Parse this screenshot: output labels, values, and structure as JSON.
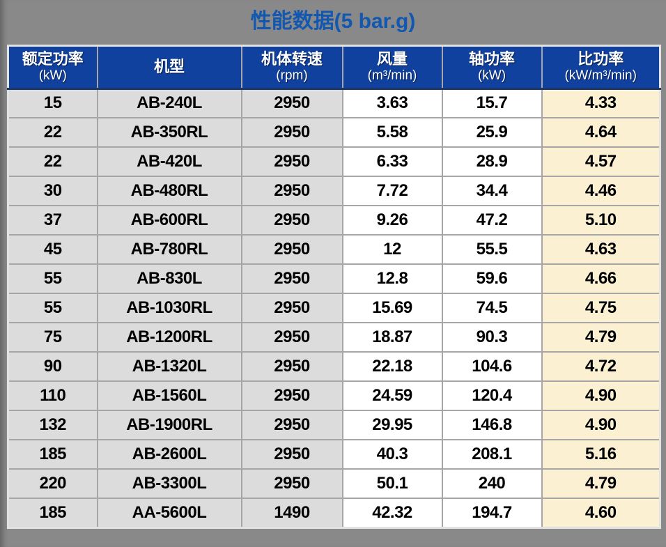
{
  "title": "性能数据(5 bar.g)",
  "chart_data": {
    "type": "table",
    "title": "性能数据(5 bar.g)",
    "columns": [
      {
        "key": "rated_power",
        "label": "额定功率",
        "unit": "(kW)"
      },
      {
        "key": "model",
        "label": "机型",
        "unit": ""
      },
      {
        "key": "body_speed",
        "label": "机体转速",
        "unit": "(rpm)"
      },
      {
        "key": "air_flow",
        "label": "风量",
        "unit": "(m³/min)"
      },
      {
        "key": "shaft_power",
        "label": "轴功率",
        "unit": "(kW)"
      },
      {
        "key": "specific_power",
        "label": "比功率",
        "unit": "(kW/m³/min)"
      }
    ],
    "rows": [
      [
        "15",
        "AB-240L",
        "2950",
        "3.63",
        "15.7",
        "4.33"
      ],
      [
        "22",
        "AB-350RL",
        "2950",
        "5.58",
        "25.9",
        "4.64"
      ],
      [
        "22",
        "AB-420L",
        "2950",
        "6.33",
        "28.9",
        "4.57"
      ],
      [
        "30",
        "AB-480RL",
        "2950",
        "7.72",
        "34.4",
        "4.46"
      ],
      [
        "37",
        "AB-600RL",
        "2950",
        "9.26",
        "47.2",
        "5.10"
      ],
      [
        "45",
        "AB-780RL",
        "2950",
        "12",
        "55.5",
        "4.63"
      ],
      [
        "55",
        "AB-830L",
        "2950",
        "12.8",
        "59.6",
        "4.66"
      ],
      [
        "55",
        "AB-1030RL",
        "2950",
        "15.69",
        "74.5",
        "4.75"
      ],
      [
        "75",
        "AB-1200RL",
        "2950",
        "18.87",
        "90.3",
        "4.79"
      ],
      [
        "90",
        "AB-1320L",
        "2950",
        "22.18",
        "104.6",
        "4.72"
      ],
      [
        "110",
        "AB-1560L",
        "2950",
        "24.59",
        "120.4",
        "4.90"
      ],
      [
        "132",
        "AB-1900RL",
        "2950",
        "29.95",
        "146.8",
        "4.90"
      ],
      [
        "185",
        "AB-2600L",
        "2950",
        "40.3",
        "208.1",
        "5.16"
      ],
      [
        "220",
        "AB-3300L",
        "2950",
        "50.1",
        "240",
        "4.79"
      ],
      [
        "185",
        "AA-5600L",
        "1490",
        "42.32",
        "194.7",
        "4.60"
      ]
    ]
  },
  "colors": {
    "page_background": "#898989",
    "title_text": "#1257B0",
    "header_background": "#10419E",
    "header_text": "#FFFFFF",
    "header_bottom_border": "#1A366E",
    "gray_cell": "#DCDCDC",
    "white_cell": "#FFFFFF",
    "highlight_cell": "#FBF0D2",
    "cell_border": "#A6A6A6",
    "data_text": "#000000"
  }
}
